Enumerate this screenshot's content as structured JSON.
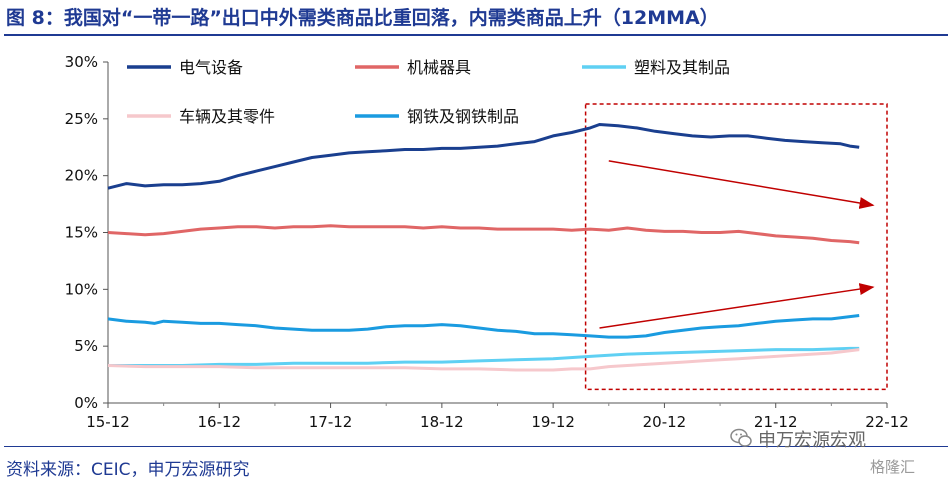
{
  "title": "图 8：我国对“一带一路”出口中外需类商品比重回落，内需类商品上升（12MMA）",
  "source": "资料来源：CEIC，申万宏源研究",
  "brand": "申万宏源宏观",
  "watermark": "格隆汇",
  "chart_data": {
    "type": "line",
    "x_labels": [
      "15-12",
      "16-12",
      "17-12",
      "18-12",
      "19-12",
      "20-12",
      "21-12",
      "22-12"
    ],
    "x_range": [
      0,
      84
    ],
    "ylim": [
      0,
      30
    ],
    "y_ticks": [
      {
        "value": 0,
        "label": "0%"
      },
      {
        "value": 5,
        "label": "5%"
      },
      {
        "value": 10,
        "label": "10%"
      },
      {
        "value": 15,
        "label": "15%"
      },
      {
        "value": 20,
        "label": "20%"
      },
      {
        "value": 25,
        "label": "25%"
      },
      {
        "value": 30,
        "label": "30%"
      }
    ],
    "grid": false,
    "legend_position": "top",
    "series": [
      {
        "name": "电气设备",
        "color": "#1a3f8f",
        "points": [
          [
            0,
            18.9
          ],
          [
            2,
            19.3
          ],
          [
            4,
            19.1
          ],
          [
            6,
            19.2
          ],
          [
            8,
            19.2
          ],
          [
            10,
            19.3
          ],
          [
            12,
            19.5
          ],
          [
            14,
            20.0
          ],
          [
            16,
            20.4
          ],
          [
            18,
            20.8
          ],
          [
            20,
            21.2
          ],
          [
            22,
            21.6
          ],
          [
            24,
            21.8
          ],
          [
            26,
            22.0
          ],
          [
            28,
            22.1
          ],
          [
            30,
            22.2
          ],
          [
            32,
            22.3
          ],
          [
            34,
            22.3
          ],
          [
            36,
            22.4
          ],
          [
            38,
            22.4
          ],
          [
            40,
            22.5
          ],
          [
            42,
            22.6
          ],
          [
            44,
            22.8
          ],
          [
            46,
            23.0
          ],
          [
            48,
            23.5
          ],
          [
            50,
            23.8
          ],
          [
            52,
            24.2
          ],
          [
            53,
            24.5
          ],
          [
            55,
            24.4
          ],
          [
            57,
            24.2
          ],
          [
            59,
            23.9
          ],
          [
            61,
            23.7
          ],
          [
            63,
            23.5
          ],
          [
            65,
            23.4
          ],
          [
            67,
            23.5
          ],
          [
            69,
            23.5
          ],
          [
            71,
            23.3
          ],
          [
            73,
            23.1
          ],
          [
            75,
            23.0
          ],
          [
            77,
            22.9
          ],
          [
            79,
            22.8
          ],
          [
            80,
            22.6
          ],
          [
            81,
            22.5
          ]
        ]
      },
      {
        "name": "机械器具",
        "color": "#e06666",
        "points": [
          [
            0,
            15.0
          ],
          [
            2,
            14.9
          ],
          [
            4,
            14.8
          ],
          [
            6,
            14.9
          ],
          [
            8,
            15.1
          ],
          [
            10,
            15.3
          ],
          [
            12,
            15.4
          ],
          [
            14,
            15.5
          ],
          [
            16,
            15.5
          ],
          [
            18,
            15.4
          ],
          [
            20,
            15.5
          ],
          [
            22,
            15.5
          ],
          [
            24,
            15.6
          ],
          [
            26,
            15.5
          ],
          [
            28,
            15.5
          ],
          [
            30,
            15.5
          ],
          [
            32,
            15.5
          ],
          [
            34,
            15.4
          ],
          [
            36,
            15.5
          ],
          [
            38,
            15.4
          ],
          [
            40,
            15.4
          ],
          [
            42,
            15.3
          ],
          [
            44,
            15.3
          ],
          [
            46,
            15.3
          ],
          [
            48,
            15.3
          ],
          [
            50,
            15.2
          ],
          [
            52,
            15.3
          ],
          [
            54,
            15.2
          ],
          [
            56,
            15.4
          ],
          [
            58,
            15.2
          ],
          [
            60,
            15.1
          ],
          [
            62,
            15.1
          ],
          [
            64,
            15.0
          ],
          [
            66,
            15.0
          ],
          [
            68,
            15.1
          ],
          [
            70,
            14.9
          ],
          [
            72,
            14.7
          ],
          [
            74,
            14.6
          ],
          [
            76,
            14.5
          ],
          [
            78,
            14.3
          ],
          [
            80,
            14.2
          ],
          [
            81,
            14.1
          ]
        ]
      },
      {
        "name": "塑料及其制品",
        "color": "#5fd0f3",
        "points": [
          [
            0,
            3.3
          ],
          [
            4,
            3.3
          ],
          [
            8,
            3.3
          ],
          [
            12,
            3.4
          ],
          [
            16,
            3.4
          ],
          [
            20,
            3.5
          ],
          [
            24,
            3.5
          ],
          [
            28,
            3.5
          ],
          [
            32,
            3.6
          ],
          [
            36,
            3.6
          ],
          [
            40,
            3.7
          ],
          [
            44,
            3.8
          ],
          [
            48,
            3.9
          ],
          [
            52,
            4.1
          ],
          [
            56,
            4.3
          ],
          [
            60,
            4.4
          ],
          [
            64,
            4.5
          ],
          [
            68,
            4.6
          ],
          [
            72,
            4.7
          ],
          [
            76,
            4.7
          ],
          [
            80,
            4.8
          ],
          [
            81,
            4.8
          ]
        ]
      },
      {
        "name": "车辆及其零件",
        "color": "#f6c8cc",
        "points": [
          [
            0,
            3.3
          ],
          [
            4,
            3.2
          ],
          [
            8,
            3.2
          ],
          [
            12,
            3.2
          ],
          [
            16,
            3.1
          ],
          [
            20,
            3.1
          ],
          [
            24,
            3.1
          ],
          [
            28,
            3.1
          ],
          [
            32,
            3.1
          ],
          [
            36,
            3.0
          ],
          [
            40,
            3.0
          ],
          [
            44,
            2.9
          ],
          [
            46,
            2.9
          ],
          [
            48,
            2.9
          ],
          [
            50,
            3.0
          ],
          [
            52,
            3.0
          ],
          [
            54,
            3.2
          ],
          [
            56,
            3.3
          ],
          [
            58,
            3.4
          ],
          [
            60,
            3.5
          ],
          [
            62,
            3.6
          ],
          [
            64,
            3.7
          ],
          [
            66,
            3.8
          ],
          [
            68,
            3.9
          ],
          [
            70,
            4.0
          ],
          [
            72,
            4.1
          ],
          [
            74,
            4.2
          ],
          [
            76,
            4.3
          ],
          [
            78,
            4.4
          ],
          [
            80,
            4.6
          ],
          [
            81,
            4.7
          ]
        ]
      },
      {
        "name": "钢铁及钢铁制品",
        "color": "#1a9be0",
        "points": [
          [
            0,
            7.4
          ],
          [
            2,
            7.2
          ],
          [
            4,
            7.1
          ],
          [
            5,
            7.0
          ],
          [
            6,
            7.2
          ],
          [
            8,
            7.1
          ],
          [
            10,
            7.0
          ],
          [
            12,
            7.0
          ],
          [
            14,
            6.9
          ],
          [
            16,
            6.8
          ],
          [
            18,
            6.6
          ],
          [
            20,
            6.5
          ],
          [
            22,
            6.4
          ],
          [
            24,
            6.4
          ],
          [
            26,
            6.4
          ],
          [
            28,
            6.5
          ],
          [
            30,
            6.7
          ],
          [
            32,
            6.8
          ],
          [
            34,
            6.8
          ],
          [
            36,
            6.9
          ],
          [
            38,
            6.8
          ],
          [
            40,
            6.6
          ],
          [
            42,
            6.4
          ],
          [
            44,
            6.3
          ],
          [
            46,
            6.1
          ],
          [
            48,
            6.1
          ],
          [
            50,
            6.0
          ],
          [
            52,
            5.9
          ],
          [
            54,
            5.8
          ],
          [
            56,
            5.8
          ],
          [
            58,
            5.9
          ],
          [
            60,
            6.2
          ],
          [
            62,
            6.4
          ],
          [
            64,
            6.6
          ],
          [
            66,
            6.7
          ],
          [
            68,
            6.8
          ],
          [
            70,
            7.0
          ],
          [
            72,
            7.2
          ],
          [
            74,
            7.3
          ],
          [
            76,
            7.4
          ],
          [
            78,
            7.4
          ],
          [
            80,
            7.6
          ],
          [
            81,
            7.7
          ]
        ]
      }
    ],
    "annotation": {
      "box_x_range": [
        51.5,
        84
      ],
      "box_y_range": [
        1.2,
        26.3
      ],
      "box_color": "#c00000",
      "arrows": [
        {
          "from": [
            54,
            21.3
          ],
          "to": [
            82.5,
            17.4
          ],
          "color": "#c00000"
        },
        {
          "from": [
            53,
            6.6
          ],
          "to": [
            82.5,
            10.2
          ],
          "color": "#c00000"
        }
      ]
    }
  }
}
